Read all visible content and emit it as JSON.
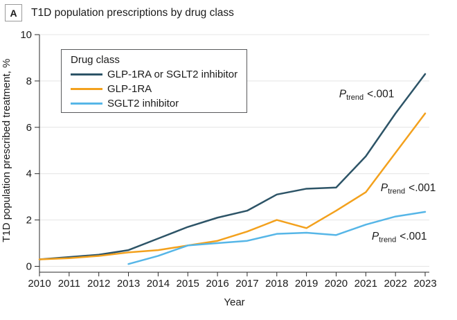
{
  "panel_label": "A",
  "title": "T1D population prescriptions by drug class",
  "chart_data": {
    "type": "line",
    "title": "T1D population prescriptions by drug class",
    "xlabel": "Year",
    "ylabel": "T1D population prescribed treatment, %",
    "xlim": [
      2010,
      2023
    ],
    "ylim": [
      0,
      10
    ],
    "xticks": [
      2010,
      2011,
      2012,
      2013,
      2014,
      2015,
      2016,
      2017,
      2018,
      2019,
      2020,
      2021,
      2022,
      2023
    ],
    "yticks": [
      0,
      2,
      4,
      6,
      8,
      10
    ],
    "grid": true,
    "legend_title": "Drug class",
    "legend_position": "top-left",
    "x": [
      2010,
      2011,
      2012,
      2013,
      2014,
      2015,
      2016,
      2017,
      2018,
      2019,
      2020,
      2021,
      2022,
      2023
    ],
    "series": [
      {
        "name": "GLP-1RA or SGLT2 inhibitor",
        "color": "#2d5467",
        "values": [
          0.3,
          0.4,
          0.5,
          0.7,
          1.2,
          1.7,
          2.1,
          2.4,
          3.1,
          3.35,
          3.4,
          4.75,
          6.6,
          8.3
        ]
      },
      {
        "name": "GLP-1RA",
        "color": "#f3a11d",
        "values": [
          0.3,
          0.35,
          0.45,
          0.6,
          0.7,
          0.9,
          1.1,
          1.5,
          2.0,
          1.65,
          2.4,
          3.2,
          4.9,
          6.6
        ]
      },
      {
        "name": "SGLT2 inhibitor",
        "color": "#56b6e7",
        "values": [
          null,
          null,
          null,
          0.1,
          0.45,
          0.9,
          1.0,
          1.1,
          1.4,
          1.45,
          1.35,
          1.8,
          2.15,
          2.35
        ]
      }
    ],
    "annotations": [
      {
        "series": "GLP-1RA or SGLT2 inhibitor",
        "p": "P",
        "sub": "trend",
        "value": "<.001",
        "x": 2020.1,
        "y": 7.3
      },
      {
        "series": "GLP-1RA",
        "p": "P",
        "sub": "trend",
        "value": "<.001",
        "x": 2021.5,
        "y": 3.25
      },
      {
        "series": "SGLT2 inhibitor",
        "p": "P",
        "sub": "trend",
        "value": "<.001",
        "x": 2021.2,
        "y": 1.15
      }
    ]
  }
}
